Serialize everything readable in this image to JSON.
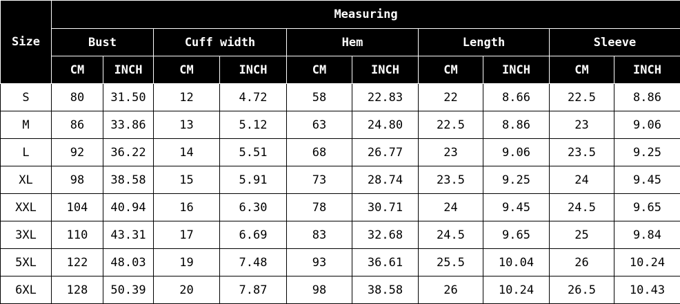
{
  "header": {
    "title": "Measuring",
    "size_label": "Size",
    "groups": [
      {
        "name": "Bust",
        "units": [
          "CM",
          "INCH"
        ]
      },
      {
        "name": "Cuff width",
        "units": [
          "CM",
          "INCH"
        ]
      },
      {
        "name": "Hem",
        "units": [
          "CM",
          "INCH"
        ]
      },
      {
        "name": "Length",
        "units": [
          "CM",
          "INCH"
        ]
      },
      {
        "name": "Sleeve",
        "units": [
          "CM",
          "INCH"
        ]
      }
    ]
  },
  "table": {
    "rows": [
      [
        "S",
        "80",
        "31.50",
        "12",
        "4.72",
        "58",
        "22.83",
        "22",
        "8.66",
        "22.5",
        "8.86"
      ],
      [
        "M",
        "86",
        "33.86",
        "13",
        "5.12",
        "63",
        "24.80",
        "22.5",
        "8.86",
        "23",
        "9.06"
      ],
      [
        "L",
        "92",
        "36.22",
        "14",
        "5.51",
        "68",
        "26.77",
        "23",
        "9.06",
        "23.5",
        "9.25"
      ],
      [
        "XL",
        "98",
        "38.58",
        "15",
        "5.91",
        "73",
        "28.74",
        "23.5",
        "9.25",
        "24",
        "9.45"
      ],
      [
        "XXL",
        "104",
        "40.94",
        "16",
        "6.30",
        "78",
        "30.71",
        "24",
        "9.45",
        "24.5",
        "9.65"
      ],
      [
        "3XL",
        "110",
        "43.31",
        "17",
        "6.69",
        "83",
        "32.68",
        "24.5",
        "9.65",
        "25",
        "9.84"
      ],
      [
        "5XL",
        "122",
        "48.03",
        "19",
        "7.48",
        "93",
        "36.61",
        "25.5",
        "10.04",
        "26",
        "10.24"
      ],
      [
        "6XL",
        "128",
        "50.39",
        "20",
        "7.87",
        "98",
        "38.58",
        "26",
        "10.24",
        "26.5",
        "10.43"
      ]
    ]
  }
}
